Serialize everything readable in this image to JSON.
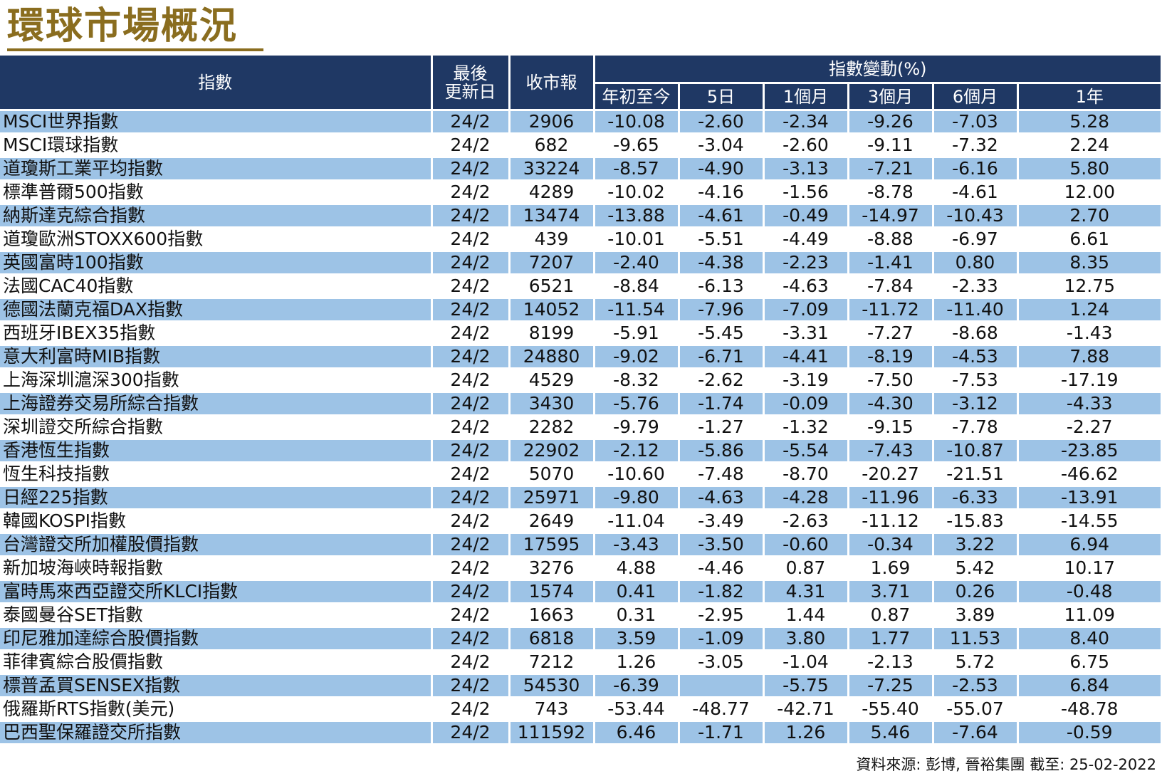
{
  "title": "環球市場概況",
  "table": {
    "headers": {
      "index": "指數",
      "last_update_line1": "最後",
      "last_update_line2": "更新日",
      "close": "收市報",
      "change_group": "指數變動(%)",
      "periods": [
        "年初至今",
        "5日",
        "1個月",
        "3個月",
        "6個月",
        "1年"
      ]
    },
    "rows": [
      [
        "MSCI世界指數",
        "24/2",
        "2906",
        "-10.08",
        "-2.60",
        "-2.34",
        "-9.26",
        "-7.03",
        "5.28"
      ],
      [
        "MSCI環球指數",
        "24/2",
        "682",
        "-9.65",
        "-3.04",
        "-2.60",
        "-9.11",
        "-7.32",
        "2.24"
      ],
      [
        "道瓊斯工業平均指數",
        "24/2",
        "33224",
        "-8.57",
        "-4.90",
        "-3.13",
        "-7.21",
        "-6.16",
        "5.80"
      ],
      [
        "標準普爾500指數",
        "24/2",
        "4289",
        "-10.02",
        "-4.16",
        "-1.56",
        "-8.78",
        "-4.61",
        "12.00"
      ],
      [
        "納斯達克綜合指數",
        "24/2",
        "13474",
        "-13.88",
        "-4.61",
        "-0.49",
        "-14.97",
        "-10.43",
        "2.70"
      ],
      [
        "道瓊歐洲STOXX600指數",
        "24/2",
        "439",
        "-10.01",
        "-5.51",
        "-4.49",
        "-8.88",
        "-6.97",
        "6.61"
      ],
      [
        "英國富時100指數",
        "24/2",
        "7207",
        "-2.40",
        "-4.38",
        "-2.23",
        "-1.41",
        "0.80",
        "8.35"
      ],
      [
        "法國CAC40指數",
        "24/2",
        "6521",
        "-8.84",
        "-6.13",
        "-4.63",
        "-7.84",
        "-2.33",
        "12.75"
      ],
      [
        "德國法蘭克福DAX指數",
        "24/2",
        "14052",
        "-11.54",
        "-7.96",
        "-7.09",
        "-11.72",
        "-11.40",
        "1.24"
      ],
      [
        "西班牙IBEX35指數",
        "24/2",
        "8199",
        "-5.91",
        "-5.45",
        "-3.31",
        "-7.27",
        "-8.68",
        "-1.43"
      ],
      [
        "意大利富時MIB指數",
        "24/2",
        "24880",
        "-9.02",
        "-6.71",
        "-4.41",
        "-8.19",
        "-4.53",
        "7.88"
      ],
      [
        "上海深圳滬深300指數",
        "24/2",
        "4529",
        "-8.32",
        "-2.62",
        "-3.19",
        "-7.50",
        "-7.53",
        "-17.19"
      ],
      [
        "上海證券交易所綜合指數",
        "24/2",
        "3430",
        "-5.76",
        "-1.74",
        "-0.09",
        "-4.30",
        "-3.12",
        "-4.33"
      ],
      [
        "深圳證交所綜合指數",
        "24/2",
        "2282",
        "-9.79",
        "-1.27",
        "-1.32",
        "-9.15",
        "-7.78",
        "-2.27"
      ],
      [
        "香港恆生指數",
        "24/2",
        "22902",
        "-2.12",
        "-5.86",
        "-5.54",
        "-7.43",
        "-10.87",
        "-23.85"
      ],
      [
        "恆生科技指數",
        "24/2",
        "5070",
        "-10.60",
        "-7.48",
        "-8.70",
        "-20.27",
        "-21.51",
        "-46.62"
      ],
      [
        "日經225指數",
        "24/2",
        "25971",
        "-9.80",
        "-4.63",
        "-4.28",
        "-11.96",
        "-6.33",
        "-13.91"
      ],
      [
        "韓國KOSPI指數",
        "24/2",
        "2649",
        "-11.04",
        "-3.49",
        "-2.63",
        "-11.12",
        "-15.83",
        "-14.55"
      ],
      [
        "台灣證交所加權股價指數",
        "24/2",
        "17595",
        "-3.43",
        "-3.50",
        "-0.60",
        "-0.34",
        "3.22",
        "6.94"
      ],
      [
        "新加坡海峽時報指數",
        "24/2",
        "3276",
        "4.88",
        "-4.46",
        "0.87",
        "1.69",
        "5.42",
        "10.17"
      ],
      [
        "富時馬來西亞證交所KLCI指數",
        "24/2",
        "1574",
        "0.41",
        "-1.82",
        "4.31",
        "3.71",
        "0.26",
        "-0.48"
      ],
      [
        "泰國曼谷SET指數",
        "24/2",
        "1663",
        "0.31",
        "-2.95",
        "1.44",
        "0.87",
        "3.89",
        "11.09"
      ],
      [
        "印尼雅加達綜合股價指數",
        "24/2",
        "6818",
        "3.59",
        "-1.09",
        "3.80",
        "1.77",
        "11.53",
        "8.40"
      ],
      [
        "菲律賓綜合股價指數",
        "24/2",
        "7212",
        "1.26",
        "-3.05",
        "-1.04",
        "-2.13",
        "5.72",
        "6.75"
      ],
      [
        "標普孟買SENSEX指數",
        "24/2",
        "54530",
        "-6.39",
        "",
        "-5.75",
        "-7.25",
        "-2.53",
        "6.84"
      ],
      [
        "俄羅斯RTS指數(美元)",
        "24/2",
        "743",
        "-53.44",
        "-48.77",
        "-42.71",
        "-55.40",
        "-55.07",
        "-48.78"
      ],
      [
        "巴西聖保羅證交所指數",
        "24/2",
        "111592",
        "6.46",
        "-1.71",
        "1.26",
        "5.46",
        "-7.64",
        "-0.59"
      ]
    ]
  },
  "source": "資料來源: 彭博, 晉裕集團 截至: 25-02-2022",
  "colors": {
    "title": "#8a6d1f",
    "header_bg": "#1f3864",
    "row_stripe": "#9dc3e6"
  }
}
